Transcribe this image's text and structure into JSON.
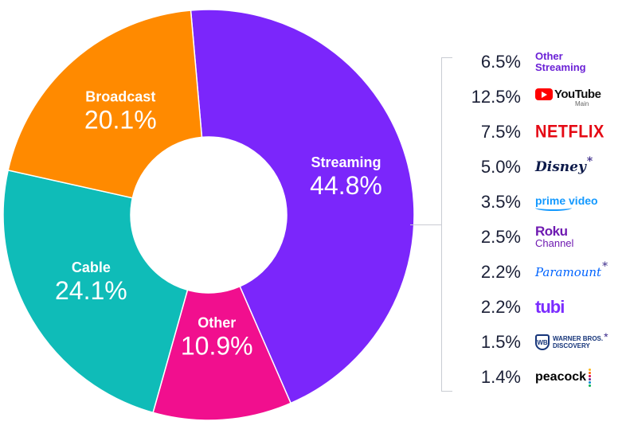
{
  "chart_data": {
    "type": "pie",
    "variant": "donut",
    "segments": [
      {
        "label": "Streaming",
        "value": 44.8,
        "display": "44.8%",
        "color": "#7b26fb"
      },
      {
        "label": "Other",
        "value": 10.9,
        "display": "10.9%",
        "color": "#f10f8e"
      },
      {
        "label": "Cable",
        "value": 24.1,
        "display": "24.1%",
        "color": "#0fbcb8"
      },
      {
        "label": "Broadcast",
        "value": 20.1,
        "display": "20.1%",
        "color": "#ff8a00"
      }
    ],
    "streaming_breakdown": [
      {
        "platform": "Other Streaming",
        "logo_lines": [
          "Other",
          "Streaming"
        ],
        "value": 6.5,
        "display": "6.5%",
        "logo": "text-logo"
      },
      {
        "platform": "YouTube Main",
        "logo_text": "YouTube",
        "logo_sub": "Main",
        "value": 12.5,
        "display": "12.5%",
        "logo": "youtube-logo"
      },
      {
        "platform": "Netflix",
        "logo_text": "NETFLIX",
        "value": 7.5,
        "display": "7.5%",
        "logo": "netflix-logo"
      },
      {
        "platform": "Disney",
        "logo_text": "Disney",
        "asterisk": "*",
        "value": 5.0,
        "display": "5.0%",
        "logo": "disney-logo"
      },
      {
        "platform": "Prime Video",
        "logo_text": "prime video",
        "value": 3.5,
        "display": "3.5%",
        "logo": "prime-video-logo"
      },
      {
        "platform": "Roku Channel",
        "logo_text": "Roku",
        "logo_sub": "Channel",
        "value": 2.5,
        "display": "2.5%",
        "logo": "roku-logo"
      },
      {
        "platform": "Paramount",
        "logo_text": "Paramount",
        "asterisk": "*",
        "value": 2.2,
        "display": "2.2%",
        "logo": "paramount-logo"
      },
      {
        "platform": "Tubi",
        "logo_text": "tubi",
        "value": 2.2,
        "display": "2.2%",
        "logo": "tubi-logo"
      },
      {
        "platform": "Warner Bros. Discovery",
        "logo_lines": [
          "WARNER BROS.",
          "DISCOVERY"
        ],
        "asterisk": "*",
        "value": 1.5,
        "display": "1.5%",
        "logo": "wbd-logo"
      },
      {
        "platform": "Peacock",
        "logo_text": "peacock",
        "value": 1.4,
        "display": "1.4%",
        "logo": "peacock-logo"
      }
    ]
  }
}
